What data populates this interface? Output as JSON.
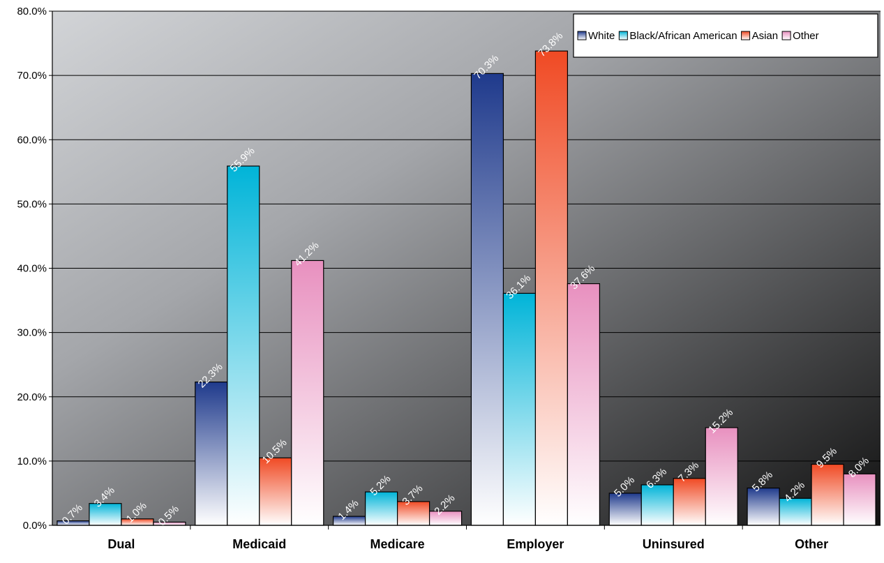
{
  "chart_data": {
    "type": "bar",
    "categories": [
      "Dual",
      "Medicaid",
      "Medicare",
      "Employer",
      "Uninsured",
      "Other"
    ],
    "series": [
      {
        "name": "White",
        "values": [
          0.7,
          22.3,
          1.4,
          70.3,
          5.0,
          5.8
        ],
        "labels": [
          "0.7%",
          "22.3%",
          "1.4%",
          "70.3%",
          "5.0%",
          "5.8%"
        ],
        "color": "#1f3a8c"
      },
      {
        "name": "Black/African American",
        "values": [
          3.4,
          55.9,
          5.2,
          36.1,
          6.3,
          4.2
        ],
        "labels": [
          "3.4%",
          "55.9%",
          "5.2%",
          "36.1%",
          "6.3%",
          "4.2%"
        ],
        "color": "#00b4d8"
      },
      {
        "name": "Asian",
        "values": [
          1.0,
          10.5,
          3.7,
          73.8,
          7.3,
          9.5
        ],
        "labels": [
          "1.0%",
          "10.5%",
          "3.7%",
          "73.8%",
          "7.3%",
          "9.5%"
        ],
        "color": "#f04a24"
      },
      {
        "name": "Other",
        "values": [
          0.5,
          41.2,
          2.2,
          37.6,
          15.2,
          8.0
        ],
        "labels": [
          "0.5%",
          "41.2%",
          "2.2%",
          "37.6%",
          "15.2%",
          "8.0%"
        ],
        "color": "#e890bf"
      }
    ],
    "yticks": [
      "0.0%",
      "10.0%",
      "20.0%",
      "30.0%",
      "40.0%",
      "50.0%",
      "60.0%",
      "70.0%",
      "80.0%"
    ],
    "ylim": [
      0,
      80
    ],
    "title": "",
    "xlabel": "",
    "ylabel": "",
    "grid": true,
    "legend_position": "top-right"
  }
}
